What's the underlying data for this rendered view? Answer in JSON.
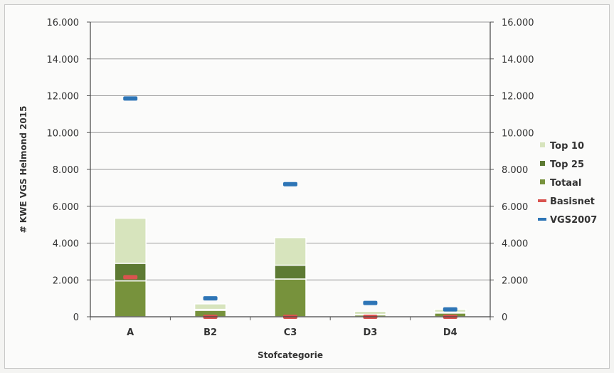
{
  "chart_data": {
    "type": "bar",
    "stacked": true,
    "title": "",
    "xlabel": "Stofcategorie",
    "ylabel": "# KWE VGS Helmond 2015",
    "ylim": [
      0,
      16000
    ],
    "yticks": [
      "0",
      "2.000",
      "4.000",
      "6.000",
      "8.000",
      "10.000",
      "12.000",
      "14.000",
      "16.000"
    ],
    "ytick_values": [
      0,
      2000,
      4000,
      6000,
      8000,
      10000,
      12000,
      14000,
      16000
    ],
    "secondary_axis": true,
    "grid": true,
    "legend_position": "right",
    "categories": [
      "A",
      "B2",
      "C3",
      "D3",
      "D4"
    ],
    "series": [
      {
        "name": "Totaal",
        "kind": "bar",
        "color": "#77923c",
        "values": [
          1950,
          350,
          2050,
          100,
          200
        ]
      },
      {
        "name": "Top 25",
        "kind": "bar",
        "color": "#5d7a33",
        "values": [
          950,
          50,
          750,
          30,
          50
        ]
      },
      {
        "name": "Top 10",
        "kind": "bar",
        "color": "#d7e4bd",
        "values": [
          2450,
          300,
          1500,
          170,
          150
        ]
      },
      {
        "name": "Basisnet",
        "kind": "marker",
        "color": "#d9534f",
        "values": [
          2150,
          0,
          0,
          0,
          0
        ]
      },
      {
        "name": "VGS2007",
        "kind": "marker",
        "color": "#2e75b6",
        "values": [
          11850,
          1000,
          7200,
          750,
          400
        ]
      }
    ],
    "legend_order": [
      "Top 10",
      "Top 25",
      "Totaal",
      "Basisnet",
      "VGS2007"
    ]
  }
}
